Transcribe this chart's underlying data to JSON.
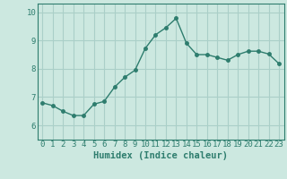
{
  "x": [
    0,
    1,
    2,
    3,
    4,
    5,
    6,
    7,
    8,
    9,
    10,
    11,
    12,
    13,
    14,
    15,
    16,
    17,
    18,
    19,
    20,
    21,
    22,
    23
  ],
  "y": [
    6.8,
    6.7,
    6.5,
    6.35,
    6.35,
    6.75,
    6.85,
    7.35,
    7.7,
    7.95,
    8.72,
    9.2,
    9.45,
    9.78,
    8.9,
    8.5,
    8.5,
    8.4,
    8.3,
    8.5,
    8.62,
    8.62,
    8.52,
    8.18
  ],
  "line_color": "#2e7d6e",
  "marker": "o",
  "markersize": 2.5,
  "linewidth": 1.0,
  "bg_color": "#cce8e0",
  "grid_color": "#aacfc8",
  "xlabel": "Humidex (Indice chaleur)",
  "xlabel_fontsize": 7.5,
  "ylim": [
    5.5,
    10.3
  ],
  "xlim": [
    -0.5,
    23.5
  ],
  "yticks": [
    6,
    7,
    8,
    9,
    10
  ],
  "xticks": [
    0,
    1,
    2,
    3,
    4,
    5,
    6,
    7,
    8,
    9,
    10,
    11,
    12,
    13,
    14,
    15,
    16,
    17,
    18,
    19,
    20,
    21,
    22,
    23
  ],
  "tick_fontsize": 6.5,
  "tick_color": "#2e7d6e",
  "axis_color": "#2e7d6e"
}
